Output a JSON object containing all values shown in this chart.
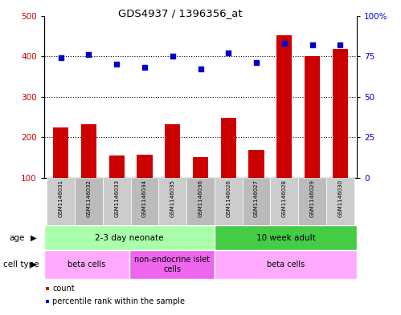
{
  "title": "GDS4937 / 1396356_at",
  "samples": [
    "GSM1146031",
    "GSM1146032",
    "GSM1146033",
    "GSM1146034",
    "GSM1146035",
    "GSM1146036",
    "GSM1146026",
    "GSM1146027",
    "GSM1146028",
    "GSM1146029",
    "GSM1146030"
  ],
  "counts": [
    225,
    232,
    155,
    158,
    232,
    152,
    248,
    170,
    452,
    400,
    418
  ],
  "percentiles": [
    74,
    76,
    70,
    68,
    75,
    67,
    77,
    71,
    83,
    82,
    82
  ],
  "ylim_left": [
    100,
    500
  ],
  "ylim_right": [
    0,
    100
  ],
  "yticks_left": [
    100,
    200,
    300,
    400,
    500
  ],
  "yticks_right": [
    0,
    25,
    50,
    75,
    100
  ],
  "bar_color": "#cc0000",
  "dot_color": "#0000cc",
  "age_groups": [
    {
      "label": "2-3 day neonate",
      "start": 0,
      "end": 6,
      "color": "#aaffaa"
    },
    {
      "label": "10 week adult",
      "start": 6,
      "end": 11,
      "color": "#44cc44"
    }
  ],
  "cell_type_groups": [
    {
      "label": "beta cells",
      "start": 0,
      "end": 3,
      "color": "#ffaaff"
    },
    {
      "label": "non-endocrine islet\ncells",
      "start": 3,
      "end": 6,
      "color": "#ee66ee"
    },
    {
      "label": "beta cells",
      "start": 6,
      "end": 11,
      "color": "#ffaaff"
    }
  ],
  "legend_items": [
    {
      "color": "#cc0000",
      "label": "count"
    },
    {
      "color": "#0000cc",
      "label": "percentile rank within the sample"
    }
  ],
  "age_label": "age",
  "cell_type_label": "cell type",
  "background_color": "#ffffff",
  "plot_bg_color": "#ffffff",
  "sample_bg_color": "#cccccc"
}
